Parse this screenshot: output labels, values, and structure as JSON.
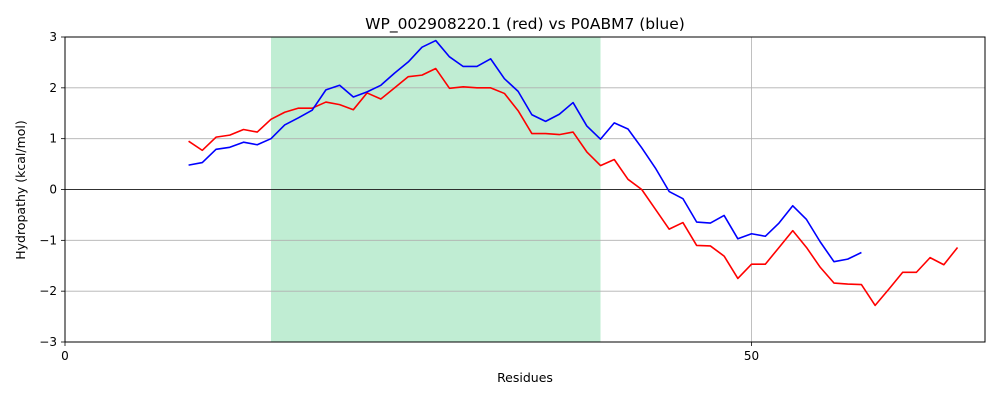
{
  "chart_data": {
    "type": "line",
    "title": "WP_002908220.1 (red) vs P0ABM7 (blue)",
    "xlabel": "Residues",
    "ylabel": "Hydropathy (kcal/mol)",
    "xlim": [
      0,
      67
    ],
    "ylim": [
      -3,
      3
    ],
    "xticks": [
      0,
      50
    ],
    "yticks": [
      -3,
      -2,
      -1,
      0,
      1,
      2,
      3
    ],
    "grid": true,
    "zero_line": true,
    "highlight_region": {
      "x0": 15,
      "x1": 39,
      "color": "#c0edd3"
    },
    "series": [
      {
        "color": "#ff0000",
        "x": [
          9,
          10,
          11,
          12,
          13,
          14,
          15,
          16,
          17,
          18,
          19,
          20,
          21,
          22,
          23,
          24,
          25,
          26,
          27,
          28,
          29,
          30,
          31,
          32,
          33,
          34,
          35,
          36,
          37,
          38,
          39,
          40,
          41,
          42,
          43,
          44,
          45,
          46,
          47,
          48,
          49,
          50,
          51,
          52,
          53,
          54,
          55,
          56,
          57,
          58,
          59,
          60,
          61,
          62,
          63,
          64,
          65
        ],
        "values": [
          0.95,
          0.77,
          1.03,
          1.07,
          1.18,
          1.13,
          1.38,
          1.52,
          1.6,
          1.6,
          1.72,
          1.67,
          1.57,
          1.9,
          1.78,
          2.0,
          2.22,
          2.25,
          2.38,
          1.99,
          2.02,
          2.0,
          2.0,
          1.89,
          1.55,
          1.1,
          1.1,
          1.08,
          1.13,
          0.74,
          0.47,
          0.59,
          0.2,
          0.0,
          -0.39,
          -0.78,
          -0.65,
          -1.1,
          -1.11,
          -1.31,
          -1.75,
          -1.47,
          -1.47,
          -1.14,
          -0.81,
          -1.14,
          -1.53,
          -1.84,
          -1.86,
          -1.87,
          -2.28,
          -1.96,
          -1.63,
          -1.63,
          -1.34,
          -1.48,
          -1.14
        ]
      },
      {
        "color": "#0000ff",
        "x": [
          9,
          10,
          11,
          12,
          13,
          14,
          15,
          16,
          17,
          18,
          19,
          20,
          21,
          22,
          23,
          24,
          25,
          26,
          27,
          28,
          29,
          30,
          31,
          32,
          33,
          34,
          35,
          36,
          37,
          38,
          39,
          40,
          41,
          42,
          43,
          44,
          45,
          46,
          47,
          48,
          49,
          50,
          51,
          52,
          53,
          54,
          55,
          56,
          57,
          58
        ],
        "values": [
          0.48,
          0.53,
          0.79,
          0.83,
          0.93,
          0.88,
          1.0,
          1.27,
          1.41,
          1.56,
          1.96,
          2.05,
          1.82,
          1.92,
          2.05,
          2.29,
          2.51,
          2.8,
          2.93,
          2.61,
          2.42,
          2.42,
          2.57,
          2.18,
          1.93,
          1.47,
          1.34,
          1.48,
          1.71,
          1.25,
          0.99,
          1.31,
          1.19,
          0.82,
          0.42,
          -0.04,
          -0.18,
          -0.64,
          -0.66,
          -0.51,
          -0.97,
          -0.87,
          -0.92,
          -0.66,
          -0.32,
          -0.59,
          -1.03,
          -1.42,
          -1.37,
          -1.24
        ]
      }
    ]
  }
}
